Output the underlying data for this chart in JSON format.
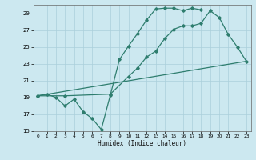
{
  "title": "",
  "xlabel": "Humidex (Indice chaleur)",
  "bg_color": "#cce8f0",
  "grid_color": "#aacfdb",
  "line_color": "#2e7d6e",
  "xlim": [
    -0.5,
    23.5
  ],
  "ylim": [
    15,
    30
  ],
  "yticks": [
    15,
    17,
    19,
    21,
    23,
    25,
    27,
    29
  ],
  "xticks": [
    0,
    1,
    2,
    3,
    4,
    5,
    6,
    7,
    8,
    9,
    10,
    11,
    12,
    13,
    14,
    15,
    16,
    17,
    18,
    19,
    20,
    21,
    22,
    23
  ],
  "line1_x": [
    0,
    1,
    2,
    3,
    4,
    5,
    6,
    7,
    8,
    9,
    10,
    11,
    12,
    13,
    14,
    15,
    16,
    17,
    18
  ],
  "line1_y": [
    19.2,
    19.4,
    19.0,
    18.0,
    18.8,
    17.3,
    16.5,
    15.2,
    19.3,
    23.5,
    25.1,
    26.6,
    28.2,
    29.5,
    29.6,
    29.6,
    29.3,
    29.6,
    29.4
  ],
  "line2_x": [
    0,
    23
  ],
  "line2_y": [
    19.2,
    23.3
  ],
  "line3_x": [
    0,
    3,
    8,
    10,
    11,
    12,
    13,
    14,
    15,
    16,
    17,
    18,
    19,
    20,
    21,
    22,
    23
  ],
  "line3_y": [
    19.2,
    19.2,
    19.4,
    21.5,
    22.5,
    23.8,
    24.5,
    26.0,
    27.1,
    27.5,
    27.5,
    27.8,
    29.3,
    28.5,
    26.5,
    25.0,
    23.3
  ]
}
